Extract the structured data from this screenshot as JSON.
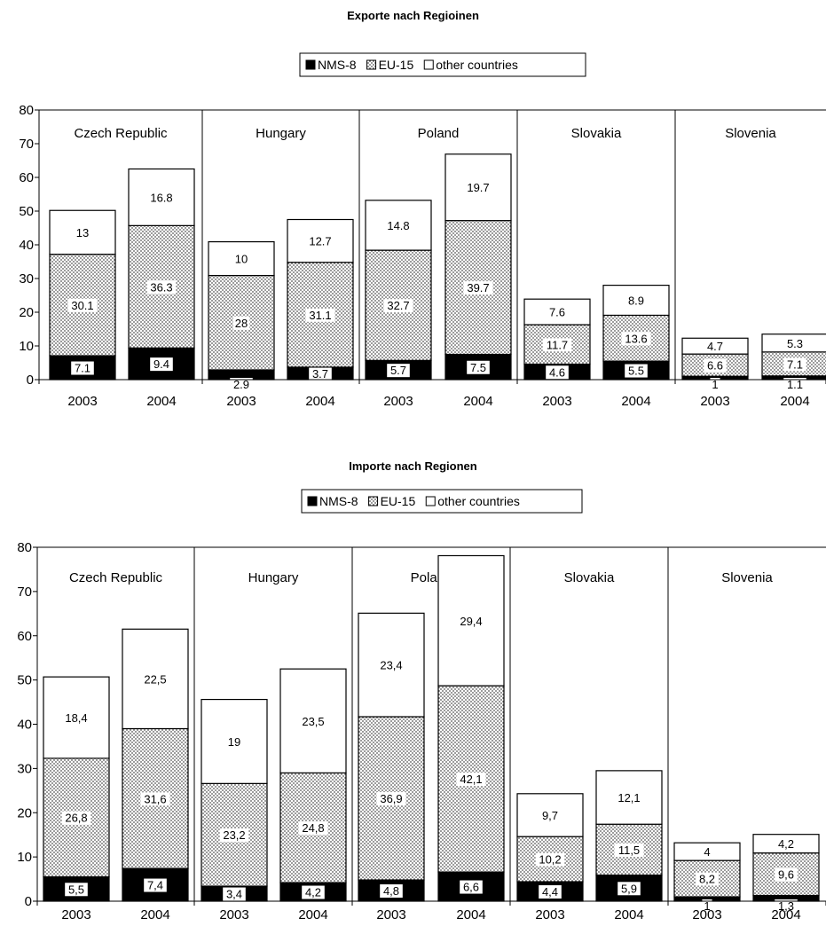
{
  "chart_data": [
    {
      "type": "bar",
      "stacked": true,
      "title": "Exporte nach Regioinen",
      "ylim": [
        0,
        80
      ],
      "yticks": [
        0,
        10,
        20,
        30,
        40,
        50,
        60,
        70,
        80
      ],
      "legend_position": "top",
      "groups": [
        "Czech Republic",
        "Hungary",
        "Poland",
        "Slovakia",
        "Slovenia"
      ],
      "categories": [
        "2003",
        "2004"
      ],
      "series": [
        {
          "name": "NMS-8",
          "color": "#000000",
          "values": [
            [
              7.1,
              9.4
            ],
            [
              2.9,
              3.7
            ],
            [
              5.7,
              7.5
            ],
            [
              4.6,
              5.5
            ],
            [
              1,
              1.1
            ]
          ],
          "labels": [
            [
              "7.1",
              "9.4"
            ],
            [
              "2.9",
              "3.7"
            ],
            [
              "5.7",
              "7.5"
            ],
            [
              "4.6",
              "5.5"
            ],
            [
              "1",
              "1.1"
            ]
          ]
        },
        {
          "name": "EU-15",
          "color": "#cccccc",
          "values": [
            [
              30.1,
              36.3
            ],
            [
              28,
              31.1
            ],
            [
              32.7,
              39.7
            ],
            [
              11.7,
              13.6
            ],
            [
              6.6,
              7.1
            ]
          ],
          "labels": [
            [
              "30.1",
              "36.3"
            ],
            [
              "28",
              "31.1"
            ],
            [
              "32.7",
              "39.7"
            ],
            [
              "11.7",
              "13.6"
            ],
            [
              "6.6",
              "7.1"
            ]
          ]
        },
        {
          "name": "other countries",
          "color": "#ffffff",
          "values": [
            [
              13,
              16.8
            ],
            [
              10,
              12.7
            ],
            [
              14.8,
              19.7
            ],
            [
              7.6,
              8.9
            ],
            [
              4.7,
              5.3
            ]
          ],
          "labels": [
            [
              "13",
              "16.8"
            ],
            [
              "10",
              "12.7"
            ],
            [
              "14.8",
              "19.7"
            ],
            [
              "7.6",
              "8.9"
            ],
            [
              "4.7",
              "5.3"
            ]
          ]
        }
      ]
    },
    {
      "type": "bar",
      "stacked": true,
      "title": "Importe nach Regionen",
      "ylim": [
        0,
        80
      ],
      "yticks": [
        0,
        10,
        20,
        30,
        40,
        50,
        60,
        70,
        80
      ],
      "legend_position": "top",
      "groups": [
        "Czech Republic",
        "Hungary",
        "Poland",
        "Slovakia",
        "Slovenia"
      ],
      "categories": [
        "2003",
        "2004"
      ],
      "series": [
        {
          "name": "NMS-8",
          "color": "#000000",
          "values": [
            [
              5.5,
              7.4
            ],
            [
              3.4,
              4.2
            ],
            [
              4.8,
              6.6
            ],
            [
              4.4,
              5.9
            ],
            [
              1,
              1.3
            ]
          ],
          "labels": [
            [
              "5,5",
              "7,4"
            ],
            [
              "3,4",
              "4,2"
            ],
            [
              "4,8",
              "6,6"
            ],
            [
              "4,4",
              "5,9"
            ],
            [
              "1",
              "1,3"
            ]
          ]
        },
        {
          "name": "EU-15",
          "color": "#cccccc",
          "values": [
            [
              26.8,
              31.6
            ],
            [
              23.2,
              24.8
            ],
            [
              36.9,
              42.1
            ],
            [
              10.2,
              11.5
            ],
            [
              8.2,
              9.6
            ]
          ],
          "labels": [
            [
              "26,8",
              "31,6"
            ],
            [
              "23,2",
              "24,8"
            ],
            [
              "36,9",
              "42,1"
            ],
            [
              "10,2",
              "11,5"
            ],
            [
              "8,2",
              "9,6"
            ]
          ]
        },
        {
          "name": "other countries",
          "color": "#ffffff",
          "values": [
            [
              18.4,
              22.5
            ],
            [
              19,
              23.5
            ],
            [
              23.4,
              29.4
            ],
            [
              9.7,
              12.1
            ],
            [
              4,
              4.2
            ]
          ],
          "labels": [
            [
              "18,4",
              "22,5"
            ],
            [
              "19",
              "23,5"
            ],
            [
              "23,4",
              "29,4"
            ],
            [
              "9,7",
              "12,1"
            ],
            [
              "4",
              "4,2"
            ]
          ]
        }
      ]
    }
  ]
}
